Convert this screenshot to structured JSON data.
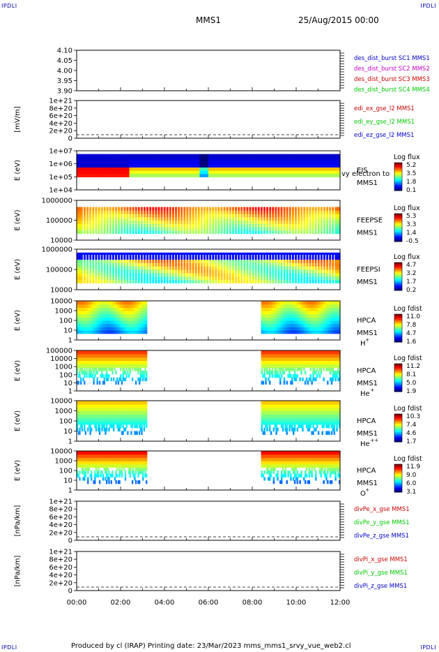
{
  "corners": {
    "tl": "IPDLI",
    "tr": "IPDLI",
    "bl": "IPDLI",
    "br": "IPDLI"
  },
  "header": {
    "mission": "MMS1",
    "datetime": "25/Aug/2015 00:00"
  },
  "footer": {
    "text": "Produced by cl (IRAP)   Printing date: 23/Mar/2023   mms_mms1_srvy_vue_web2.cl"
  },
  "x_axis": {
    "ticks": [
      "00:00",
      "02:00",
      "04:00",
      "06:00",
      "08:00",
      "10:00",
      "12:00"
    ],
    "range_hours": [
      0,
      12
    ]
  },
  "colors": {
    "sc1": "#0000c8",
    "sc2": "#c800c8",
    "sc3": "#c80000",
    "sc4": "#00c800",
    "x_comp": "#c80000",
    "y_comp": "#00c800",
    "z_comp": "#0000c8"
  },
  "chart_data": [
    {
      "type": "line",
      "id": "des",
      "ylabel": "",
      "yticks": [
        "4.10",
        "4.05",
        "4.00",
        "3.95",
        "3.90"
      ],
      "ylim": [
        3.9,
        4.1
      ],
      "legend": [
        {
          "label": "des_dist_burst SC1 MMS1",
          "color": "#0000c8"
        },
        {
          "label": "des_dist_burst SC2 MMS2",
          "color": "#c800c8"
        },
        {
          "label": "des_dist_burst SC3 MMS3",
          "color": "#c80000"
        },
        {
          "label": "des_dist_burst SC4 MMS4",
          "color": "#00c800"
        }
      ]
    },
    {
      "type": "line",
      "id": "edi",
      "ylabel": "[mV/m]",
      "yticks": [
        "1e+21",
        "8e+20",
        "6e+20",
        "4e+20",
        "2e+20",
        "0"
      ],
      "ylim": [
        0,
        1e+21
      ],
      "zero_line": true,
      "legend": [
        {
          "label": "edi_ex_gse_l2 MMS1",
          "color": "#c80000"
        },
        {
          "label": "edi_ey_gse_l2 MMS1",
          "color": "#00c800"
        },
        {
          "label": "edi_ez_gse_l2 MMS1",
          "color": "#0000c8"
        }
      ]
    },
    {
      "type": "heatmap",
      "id": "eis",
      "ylabel": "E (eV)",
      "yticks": [
        "1e+07",
        "1e+06",
        "1e+05",
        "1e+04"
      ],
      "ylim": [
        10000,
        10000000
      ],
      "log_y": true,
      "side_labels": [
        "EIS",
        "MMS1"
      ],
      "overflow_text": "vy electron to",
      "colorbar_title": "Log flux",
      "colorbar_ticks": [
        "5.2",
        "3.5",
        "1.8",
        "0.1"
      ]
    },
    {
      "type": "heatmap",
      "id": "feepse",
      "ylabel": "E (eV)",
      "yticks": [
        "1000000",
        "100000",
        "10000"
      ],
      "ylim": [
        10000,
        1000000
      ],
      "log_y": true,
      "side_labels": [
        "FEEPSE",
        "MMS1"
      ],
      "colorbar_title": "Log flux",
      "colorbar_ticks": [
        "5.3",
        "3.3",
        "1.4",
        "-0.5"
      ]
    },
    {
      "type": "heatmap",
      "id": "feepsi",
      "ylabel": "E (eV)",
      "yticks": [
        "1000000",
        "100000",
        "10000"
      ],
      "ylim": [
        10000,
        1000000
      ],
      "log_y": true,
      "side_labels": [
        "FEEPSI",
        "MMS1"
      ],
      "colorbar_title": "Log flux",
      "colorbar_ticks": [
        "4.7",
        "3.2",
        "1.7",
        "0.2"
      ]
    },
    {
      "type": "heatmap",
      "id": "hpca_h",
      "ylabel": "E (eV)",
      "yticks": [
        "10000",
        "1000",
        "100",
        "10",
        "1"
      ],
      "ylim": [
        1,
        40000
      ],
      "log_y": true,
      "side_labels": [
        "HPCA",
        "MMS1"
      ],
      "species": "H",
      "species_sup": "+",
      "colorbar_title": "Log fdist",
      "colorbar_ticks": [
        "11.0",
        "7.8",
        "4.7",
        "1.6"
      ],
      "data_hours": [
        [
          0,
          3.2
        ],
        [
          8.4,
          12
        ]
      ]
    },
    {
      "type": "heatmap",
      "id": "hpca_he",
      "ylabel": "E (eV)",
      "yticks": [
        "100000",
        "10000",
        "1000",
        "100",
        "10",
        "1"
      ],
      "ylim": [
        1,
        100000
      ],
      "log_y": true,
      "side_labels": [
        "HPCA",
        "MMS1"
      ],
      "species": "He",
      "species_sup": "+",
      "colorbar_title": "Log fdist",
      "colorbar_ticks": [
        "11.2",
        "8.1",
        "5.0",
        "1.9"
      ],
      "data_hours": [
        [
          0,
          3.2
        ],
        [
          8.4,
          12
        ]
      ]
    },
    {
      "type": "heatmap",
      "id": "hpca_hepp",
      "ylabel": "E (eV)",
      "yticks": [
        "10000",
        "1000",
        "100",
        "10",
        "1"
      ],
      "ylim": [
        1,
        40000
      ],
      "log_y": true,
      "side_labels": [
        "HPCA",
        "MMS1"
      ],
      "species": "He",
      "species_sup": "++",
      "colorbar_title": "Log fdist",
      "colorbar_ticks": [
        "10.3",
        "7.4",
        "4.6",
        "1.7"
      ],
      "data_hours": [
        [
          0,
          3.2
        ],
        [
          8.4,
          12
        ]
      ]
    },
    {
      "type": "heatmap",
      "id": "hpca_o",
      "ylabel": "E (eV)",
      "yticks": [
        "10000",
        "1000",
        "100",
        "10",
        "1"
      ],
      "ylim": [
        1,
        40000
      ],
      "log_y": true,
      "side_labels": [
        "HPCA",
        "MMS1"
      ],
      "species": "O",
      "species_sup": "+",
      "colorbar_title": "Log fdist",
      "colorbar_ticks": [
        "11.9",
        "9.0",
        "6.0",
        "3.1"
      ],
      "data_hours": [
        [
          0,
          3.2
        ],
        [
          8.4,
          12
        ]
      ]
    },
    {
      "type": "line",
      "id": "divpe",
      "ylabel": "[nPa/km]",
      "yticks": [
        "1e+21",
        "8e+20",
        "6e+20",
        "4e+20",
        "2e+20",
        "0"
      ],
      "ylim": [
        0,
        1e+21
      ],
      "zero_line": true,
      "legend": [
        {
          "label": "divPe_x_gse MMS1",
          "color": "#c80000"
        },
        {
          "label": "divPe_y_gse MMS1",
          "color": "#00c800"
        },
        {
          "label": "divPe_z_gse MMS1",
          "color": "#0000c8"
        }
      ]
    },
    {
      "type": "line",
      "id": "divpi",
      "ylabel": "[nPa/km]",
      "yticks": [
        "1e+21",
        "8e+20",
        "6e+20",
        "4e+20",
        "2e+20",
        "0"
      ],
      "ylim": [
        0,
        1e+21
      ],
      "zero_line": true,
      "legend": [
        {
          "label": "divPi_x_gse MMS1",
          "color": "#c80000"
        },
        {
          "label": "divPi_y_gse MMS1",
          "color": "#00c800"
        },
        {
          "label": "divPi_z_gse MMS1",
          "color": "#0000c8"
        }
      ]
    }
  ]
}
